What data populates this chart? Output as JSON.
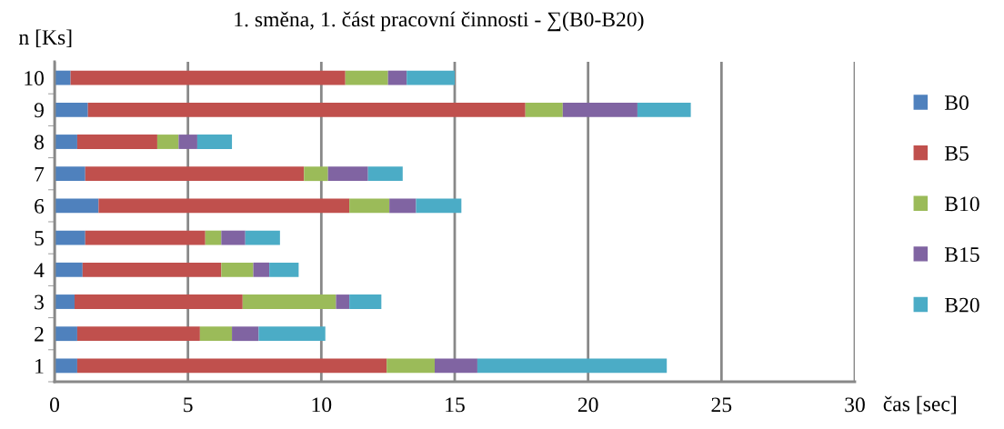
{
  "chart_data": {
    "type": "bar",
    "orientation": "horizontal",
    "stacked": true,
    "title": "1. směna, 1. část pracovní činnosti - ∑(B0-B20)",
    "xlabel": "čas [sec]",
    "ylabel": "n [Ks]",
    "categories": [
      "10",
      "9",
      "8",
      "7",
      "6",
      "5",
      "4",
      "3",
      "2",
      "1"
    ],
    "series": [
      {
        "name": "B0",
        "color": "#4f81bd",
        "values": [
          0.6,
          1.25,
          0.85,
          1.15,
          1.65,
          1.15,
          1.05,
          0.75,
          0.85,
          0.85
        ]
      },
      {
        "name": "B5",
        "color": "#c0504d",
        "values": [
          10.3,
          16.4,
          3.0,
          8.2,
          9.4,
          4.5,
          5.2,
          6.3,
          4.6,
          11.6
        ]
      },
      {
        "name": "B10",
        "color": "#9bbb59",
        "values": [
          1.6,
          1.4,
          0.8,
          0.9,
          1.5,
          0.6,
          1.2,
          3.5,
          1.2,
          1.8
        ]
      },
      {
        "name": "B15",
        "color": "#8064a2",
        "values": [
          0.7,
          2.8,
          0.7,
          1.5,
          1.0,
          0.9,
          0.6,
          0.5,
          1.0,
          1.6
        ]
      },
      {
        "name": "B20",
        "color": "#4bacc6",
        "values": [
          1.8,
          2.0,
          1.3,
          1.3,
          1.7,
          1.3,
          1.1,
          1.2,
          2.5,
          7.1
        ]
      }
    ],
    "xlim": [
      0,
      30
    ],
    "xticks": [
      0,
      5,
      10,
      15,
      20,
      25,
      30
    ],
    "grid": "x",
    "legend": "right"
  }
}
